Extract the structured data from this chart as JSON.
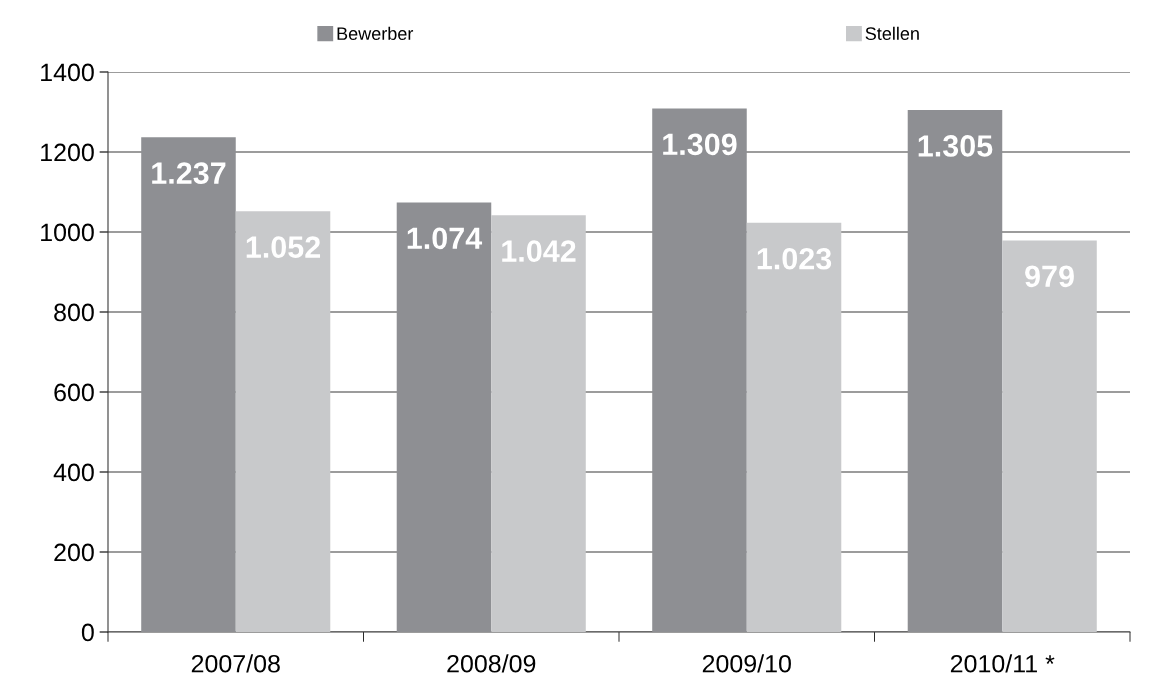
{
  "chart_data": {
    "type": "bar",
    "categories": [
      "2007/08",
      "2008/09",
      "2009/10",
      "2010/11 *"
    ],
    "series": [
      {
        "name": "Bewerber",
        "color": "#8e8f93",
        "values": [
          1237,
          1074,
          1309,
          1305
        ],
        "value_labels": [
          "1.237",
          "1.074",
          "1.309",
          "1.305"
        ]
      },
      {
        "name": "Stellen",
        "color": "#c8c9cb",
        "values": [
          1052,
          1042,
          1023,
          979
        ],
        "value_labels": [
          "1.052",
          "1.042",
          "1.023",
          "979"
        ]
      }
    ],
    "ylim": [
      0,
      1400
    ],
    "yticks": [
      0,
      200,
      400,
      600,
      800,
      1000,
      1200,
      1400
    ],
    "grid": "y",
    "legend": "top"
  }
}
